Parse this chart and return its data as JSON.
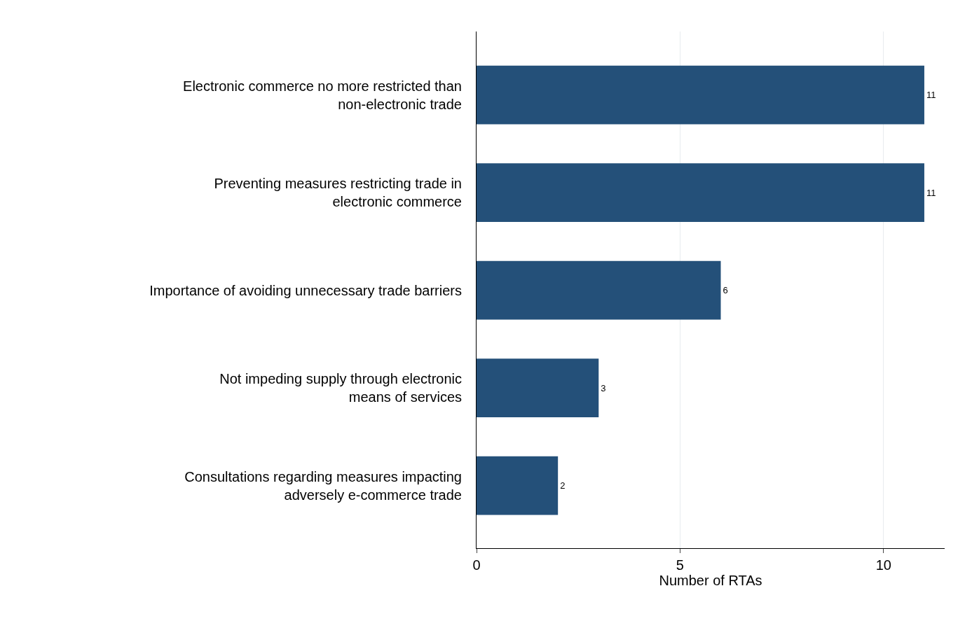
{
  "chart_data": {
    "type": "bar",
    "orientation": "horizontal",
    "xlabel": "Number of RTAs",
    "categories": [
      "Electronic commerce no more restricted than\nnon-electronic trade",
      "Preventing measures restricting trade in\nelectronic commerce",
      "Importance of avoiding unnecessary trade barriers",
      "Not impeding supply through electronic\nmeans of services",
      "Consultations regarding measures impacting\nadversely e-commerce trade"
    ],
    "values": [
      11,
      11,
      6,
      3,
      2
    ],
    "color": "#245079",
    "xlim": [
      0,
      11.5
    ],
    "xticks": [
      0,
      5,
      10
    ],
    "grid": "x",
    "data_labels": true
  }
}
